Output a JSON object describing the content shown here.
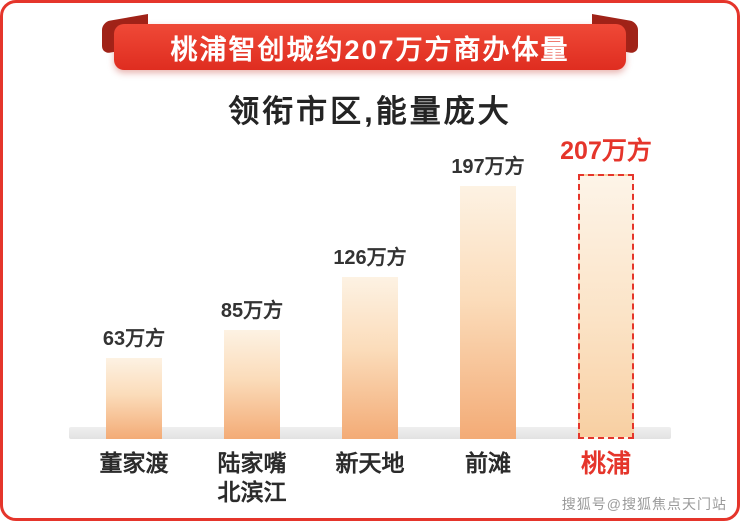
{
  "banner": {
    "title": "桃浦智创城约207万方商办体量"
  },
  "subtitle": "领衔市区,能量庞大",
  "chart_data": {
    "type": "bar",
    "title": "桃浦智创城约207万方商办体量",
    "subtitle": "领衔市区,能量庞大",
    "categories": [
      "董家渡",
      "陆家嘴\n北滨江",
      "新天地",
      "前滩",
      "桃浦"
    ],
    "values": [
      63,
      85,
      126,
      197,
      207
    ],
    "value_labels": [
      "63万方",
      "85万方",
      "126万方",
      "197万方",
      "207万方"
    ],
    "unit": "万方",
    "highlight_index": 4,
    "ylim": [
      0,
      220
    ],
    "grid": false,
    "legend": "none",
    "bar_colors": {
      "normal_top": "#fdf2e3",
      "normal_bottom": "#f3ab76",
      "highlight_top": "#fdf4e8",
      "highlight_bottom": "#f8cfa2"
    }
  },
  "colors": {
    "accent_red": "#e5352b",
    "ribbon_dark": "#a02318",
    "text_dark": "#2b2b2b",
    "baseline_gray": "#e6e6e6"
  },
  "watermark": "搜狐号@搜狐焦点天门站"
}
